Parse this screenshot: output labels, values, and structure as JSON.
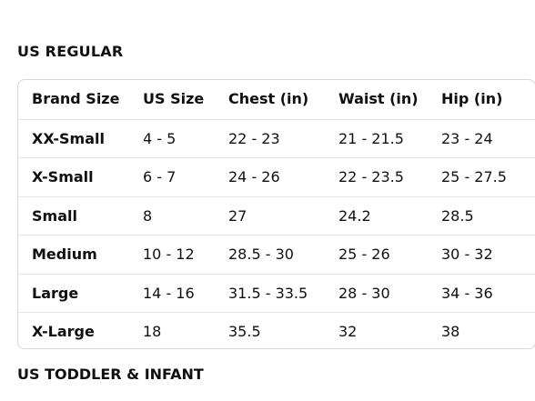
{
  "section_title": "US REGULAR",
  "table": {
    "header": [
      "Brand Size",
      "US Size",
      "Chest (in)",
      "Waist (in)",
      "Hip (in)"
    ],
    "rows": [
      [
        "XX-Small",
        "4 - 5",
        "22 - 23",
        "21 - 21.5",
        "23 - 24"
      ],
      [
        "X-Small",
        "6 - 7",
        "24 - 26",
        "22 - 23.5",
        "25 - 27.5"
      ],
      [
        "Small",
        "8",
        "27",
        "24.2",
        "28.5"
      ],
      [
        "Medium",
        "10 - 12",
        "28.5 - 30",
        "25 - 26",
        "30 - 32"
      ],
      [
        "Large",
        "14 - 16",
        "31.5 - 33.5",
        "28 - 30",
        "34 - 36"
      ],
      [
        "X-Large",
        "18",
        "35.5",
        "32",
        "38"
      ]
    ]
  },
  "next_section_title": "US TODDLER & INFANT"
}
